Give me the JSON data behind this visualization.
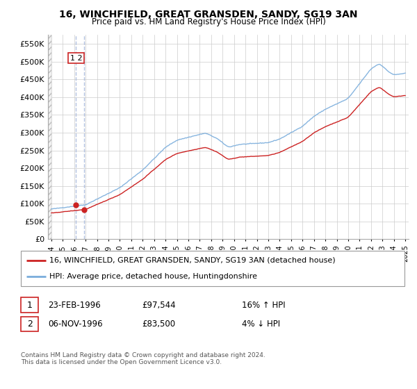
{
  "title1": "16, WINCHFIELD, GREAT GRANSDEN, SANDY, SG19 3AN",
  "title2": "Price paid vs. HM Land Registry's House Price Index (HPI)",
  "yticks": [
    0,
    50000,
    100000,
    150000,
    200000,
    250000,
    300000,
    350000,
    400000,
    450000,
    500000,
    550000
  ],
  "ytick_labels": [
    "£0",
    "£50K",
    "£100K",
    "£150K",
    "£200K",
    "£250K",
    "£300K",
    "£350K",
    "£400K",
    "£450K",
    "£500K",
    "£550K"
  ],
  "ylim": [
    0,
    575000
  ],
  "xmin_year": 1993.7,
  "xmax_year": 2025.3,
  "xticks": [
    1994,
    1995,
    1996,
    1997,
    1998,
    1999,
    2000,
    2001,
    2002,
    2003,
    2004,
    2005,
    2006,
    2007,
    2008,
    2009,
    2010,
    2011,
    2012,
    2013,
    2014,
    2015,
    2016,
    2017,
    2018,
    2019,
    2020,
    2021,
    2022,
    2023,
    2024,
    2025
  ],
  "hpi_color": "#7aaddc",
  "price_color": "#cc2222",
  "vline_color": "#aabbdd",
  "purchases": [
    {
      "date_num": 1996.14,
      "price": 97544,
      "label": "1"
    },
    {
      "date_num": 1996.85,
      "price": 83500,
      "label": "2"
    }
  ],
  "legend1": "16, WINCHFIELD, GREAT GRANSDEN, SANDY, SG19 3AN (detached house)",
  "legend2": "HPI: Average price, detached house, Huntingdonshire",
  "footer": "Contains HM Land Registry data © Crown copyright and database right 2024.\nThis data is licensed under the Open Government Licence v3.0.",
  "background_color": "#ffffff",
  "grid_color": "#cccccc"
}
